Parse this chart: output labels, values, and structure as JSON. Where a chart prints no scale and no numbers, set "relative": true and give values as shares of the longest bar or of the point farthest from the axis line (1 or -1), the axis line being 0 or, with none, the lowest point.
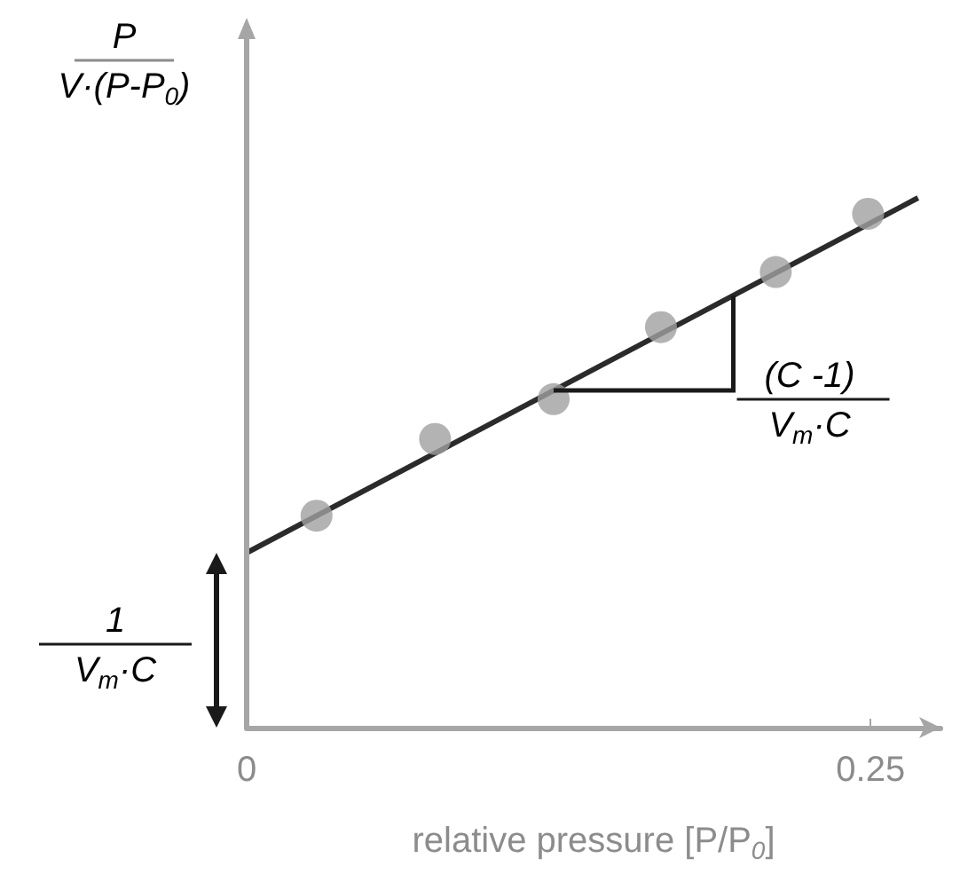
{
  "chart_data": {
    "type": "scatter",
    "relative": true,
    "xlabel": "relative pressure [P/P$_{0}$]",
    "ylabel": "P\nV·(P-P$_{0}$)",
    "annotations": [
      "1\nV$_{m}$·C",
      "(C -1)\nV$_{m}$·C"
    ],
    "xlim": [
      0,
      0.278
    ],
    "xticks": [
      0,
      0.25
    ],
    "grid": false,
    "series": [
      {
        "color": "#a0a0a0",
        "marker": "circle",
        "x": [
          0.028,
          0.0755,
          0.123,
          0.166,
          0.212,
          0.249
        ],
        "values": [
          0.4,
          0.545,
          0.62,
          0.756,
          0.86,
          0.97
        ]
      },
      {
        "type": "line",
        "color": "#2b2b2b",
        "marker": "none",
        "line_style": "solid",
        "x": [
          0,
          0.269
        ],
        "values": [
          0.33,
          1
        ]
      }
    ]
  }
}
